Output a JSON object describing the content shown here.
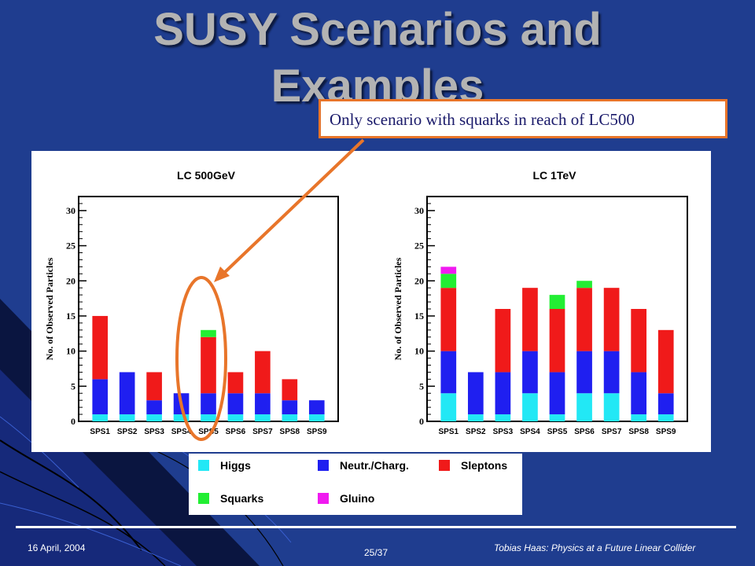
{
  "slide": {
    "title_line1": "SUSY Scenarios and",
    "title_line2": "Examples",
    "callout": "Only scenario with squarks in reach of LC500",
    "footer_date": "16 April, 2004",
    "footer_page": "25/37",
    "footer_author": "Tobias Haas: Physics at a Future Linear Collider"
  },
  "colors": {
    "background": "#1f3d8f",
    "Higgs": "#22e8f5",
    "Neutr./Charg.": "#1f1ff0",
    "Sleptons": "#f01a1a",
    "Squarks": "#22ee33",
    "Gluino": "#f01af0",
    "callout_border": "#e8752a"
  },
  "chart_data": [
    {
      "type": "bar",
      "stacked": true,
      "title": "LC 500GeV",
      "ylabel": "No. of Observed Particles",
      "xlabel": "",
      "categories": [
        "SPS1",
        "SPS2",
        "SPS3",
        "SPS4",
        "SPS5",
        "SPS6",
        "SPS7",
        "SPS8",
        "SPS9"
      ],
      "ylim": [
        0,
        32
      ],
      "yticks": [
        0,
        5,
        10,
        15,
        20,
        25,
        30
      ],
      "series": [
        {
          "name": "Higgs",
          "values": [
            1,
            1,
            1,
            1,
            1,
            1,
            1,
            1,
            1
          ]
        },
        {
          "name": "Neutr./Charg.",
          "values": [
            5,
            6,
            2,
            3,
            3,
            3,
            3,
            2,
            2
          ]
        },
        {
          "name": "Sleptons",
          "values": [
            9,
            0,
            4,
            0,
            8,
            3,
            6,
            3,
            0
          ]
        },
        {
          "name": "Squarks",
          "values": [
            0,
            0,
            0,
            0,
            1,
            0,
            0,
            0,
            0
          ]
        },
        {
          "name": "Gluino",
          "values": [
            0,
            0,
            0,
            0,
            0,
            0,
            0,
            0,
            0
          ]
        }
      ]
    },
    {
      "type": "bar",
      "stacked": true,
      "title": "LC 1TeV",
      "ylabel": "No. of Observed Particles",
      "xlabel": "",
      "categories": [
        "SPS1",
        "SPS2",
        "SPS3",
        "SPS4",
        "SPS5",
        "SPS6",
        "SPS7",
        "SPS8",
        "SPS9"
      ],
      "ylim": [
        0,
        32
      ],
      "yticks": [
        0,
        5,
        10,
        15,
        20,
        25,
        30
      ],
      "series": [
        {
          "name": "Higgs",
          "values": [
            4,
            1,
            1,
            4,
            1,
            4,
            4,
            1,
            1
          ]
        },
        {
          "name": "Neutr./Charg.",
          "values": [
            6,
            6,
            6,
            6,
            6,
            6,
            6,
            6,
            3
          ]
        },
        {
          "name": "Sleptons",
          "values": [
            9,
            0,
            9,
            9,
            9,
            9,
            9,
            9,
            9
          ]
        },
        {
          "name": "Squarks",
          "values": [
            2,
            0,
            0,
            0,
            2,
            1,
            0,
            0,
            0
          ]
        },
        {
          "name": "Gluino",
          "values": [
            1,
            0,
            0,
            0,
            0,
            0,
            0,
            0,
            0
          ]
        }
      ]
    }
  ],
  "legend": {
    "items": [
      {
        "label": "Higgs",
        "color": "#22e8f5"
      },
      {
        "label": "Neutr./Charg.",
        "color": "#1f1ff0"
      },
      {
        "label": "Sleptons",
        "color": "#f01a1a"
      },
      {
        "label": "Squarks",
        "color": "#22ee33"
      },
      {
        "label": "Gluino",
        "color": "#f01af0"
      }
    ]
  }
}
